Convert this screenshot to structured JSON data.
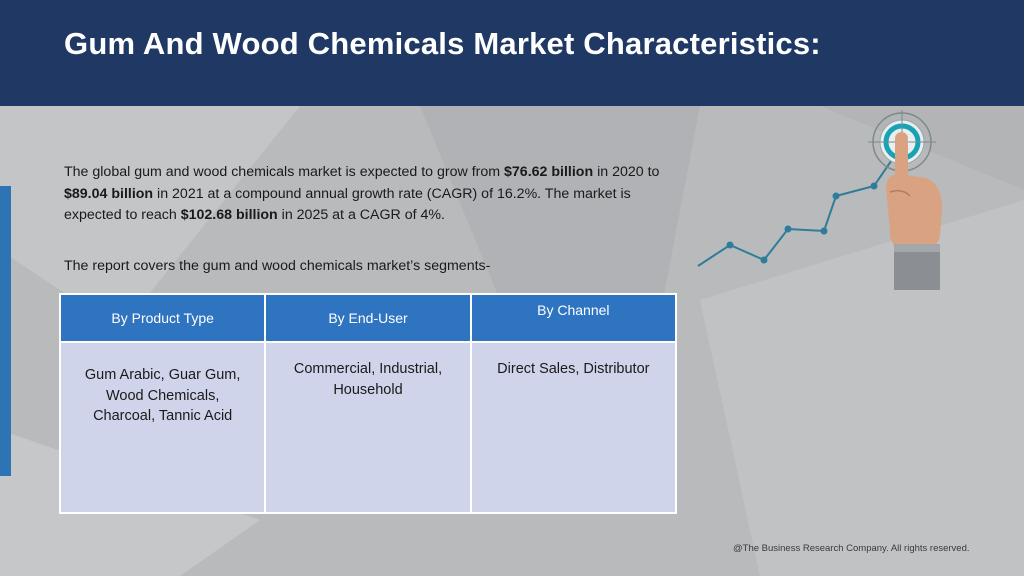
{
  "slide": {
    "title": "Gum And Wood Chemicals Market Characteristics:",
    "intro": {
      "part1": "The global gum and wood chemicals market is expected to grow from ",
      "value_2020": "$76.62 billion",
      "part2": " in 2020 to ",
      "value_2021": "$89.04 billion",
      "part3": " in 2021 at a compound annual growth rate (CAGR) of 16.2%. The market is expected to reach ",
      "value_2025": "$102.68 billion",
      "part4": " in 2025 at a CAGR of 4%."
    },
    "segments_note": "The report covers the gum and wood chemicals market’s segments-",
    "table": {
      "headers": [
        "By Product Type",
        "By End-User",
        "By Channel"
      ],
      "cells": [
        "Gum Arabic, Guar Gum, Wood Chemicals, Charcoal, Tannic Acid",
        "Commercial, Industrial, Household",
        "Direct Sales, Distributor"
      ]
    },
    "footer": "@The Business Research Company. All rights reserved."
  },
  "colors": {
    "header_bg": "#1f3864",
    "table_header": "#2f74c0",
    "table_body": "#cfd4ea",
    "accent_bar": "#2e74b5",
    "chart_line": "#2e7d9a"
  },
  "icons": [
    "target-icon",
    "pointing-hand-icon",
    "growth-line-icon"
  ]
}
